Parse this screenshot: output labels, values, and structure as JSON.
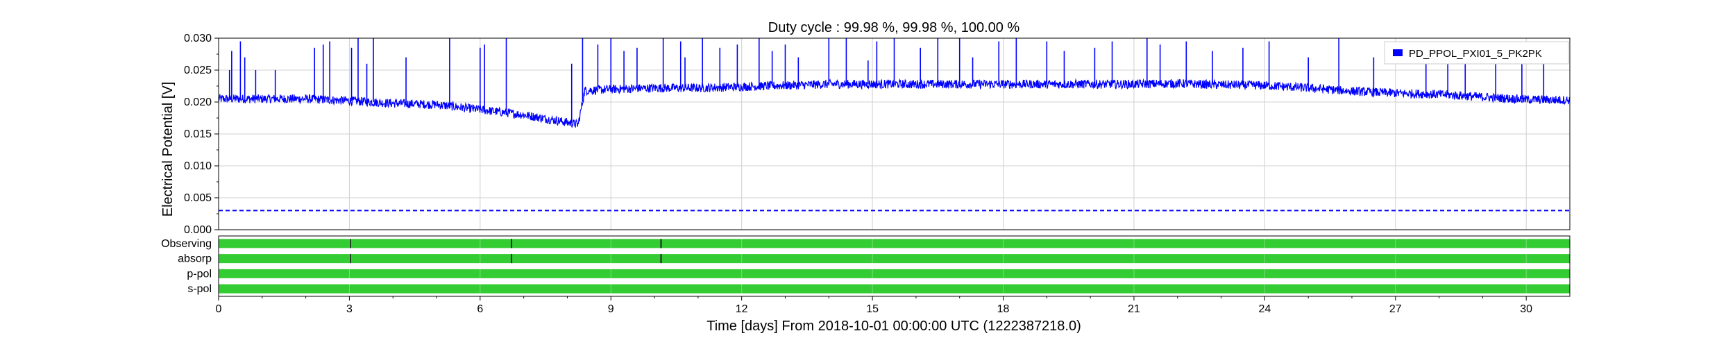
{
  "chart_data": {
    "type": "line",
    "title": "Duty cycle : 99.98 %, 99.98 %, 100.00 %",
    "xlabel": "Time [days] From 2018-10-01 00:00:00 UTC (1222387218.0)",
    "ylabel": "Electrical Potential [V]",
    "xlim": [
      0,
      31
    ],
    "ylim": [
      0,
      0.03
    ],
    "xticks": [
      0,
      3,
      6,
      9,
      12,
      15,
      18,
      21,
      24,
      27,
      30
    ],
    "yticks": [
      "0.000",
      "0.005",
      "0.010",
      "0.015",
      "0.020",
      "0.025",
      "0.030"
    ],
    "grid": true,
    "legend_position": "top-right",
    "series": [
      {
        "name": "PD_PPOL_PXI01_5_PK2PK",
        "color": "#0000ff",
        "x": [
          0,
          1,
          2,
          3,
          4,
          5,
          6,
          7,
          8,
          8.25,
          8.4,
          9,
          10,
          11,
          12,
          13,
          14,
          15,
          16,
          17,
          18,
          19,
          20,
          21,
          22,
          23,
          24,
          25,
          26,
          27,
          28,
          29,
          30,
          31
        ],
        "y": [
          0.0205,
          0.0205,
          0.0205,
          0.0202,
          0.0198,
          0.0196,
          0.0188,
          0.018,
          0.0168,
          0.0165,
          0.0218,
          0.022,
          0.0222,
          0.0222,
          0.0224,
          0.0226,
          0.0228,
          0.0228,
          0.0228,
          0.0228,
          0.0228,
          0.0228,
          0.0228,
          0.0228,
          0.0229,
          0.0227,
          0.0226,
          0.0222,
          0.0217,
          0.0214,
          0.0212,
          0.0208,
          0.0204,
          0.0203
        ],
        "noise_band": 0.0014,
        "spikes_x": [
          0.25,
          0.3,
          0.5,
          0.6,
          0.85,
          1.3,
          2.2,
          2.4,
          2.55,
          3.05,
          3.2,
          3.4,
          3.55,
          4.3,
          5.3,
          6.0,
          6.1,
          6.6,
          8.1,
          8.35,
          8.7,
          9.0,
          9.3,
          9.6,
          10.2,
          10.6,
          10.7,
          11.1,
          11.5,
          11.9,
          12.4,
          12.7,
          13.0,
          13.3,
          14.0,
          14.4,
          14.9,
          15.1,
          15.5,
          16.1,
          16.5,
          17.0,
          17.3,
          17.9,
          18.3,
          19.0,
          19.4,
          20.1,
          20.5,
          21.3,
          21.6,
          22.2,
          22.8,
          23.5,
          24.1,
          25.0,
          25.7,
          26.5,
          27.7,
          28.2,
          28.6,
          29.3,
          29.9,
          30.4
        ],
        "spikes_y": [
          0.025,
          0.028,
          0.0295,
          0.027,
          0.025,
          0.025,
          0.0285,
          0.029,
          0.0295,
          0.0285,
          0.03,
          0.026,
          0.03,
          0.027,
          0.03,
          0.0285,
          0.029,
          0.03,
          0.026,
          0.03,
          0.029,
          0.03,
          0.028,
          0.0285,
          0.03,
          0.0295,
          0.027,
          0.03,
          0.0285,
          0.029,
          0.03,
          0.028,
          0.029,
          0.027,
          0.03,
          0.03,
          0.0265,
          0.0295,
          0.03,
          0.0285,
          0.03,
          0.03,
          0.027,
          0.0295,
          0.03,
          0.0295,
          0.028,
          0.0285,
          0.0295,
          0.03,
          0.029,
          0.0295,
          0.028,
          0.0285,
          0.0295,
          0.027,
          0.03,
          0.027,
          0.029,
          0.0285,
          0.027,
          0.0265,
          0.028,
          0.026
        ]
      }
    ],
    "reference_line": {
      "y": 0.003,
      "style": "dashed",
      "color": "#0000ff"
    },
    "segments": {
      "xlim": [
        0,
        31
      ],
      "color_on": "#33cc33",
      "rows": [
        {
          "label": "Observing",
          "gaps_x": [
            3.02,
            6.72,
            10.15
          ]
        },
        {
          "label": "absorp",
          "gaps_x": [
            3.02,
            6.72,
            10.15
          ]
        },
        {
          "label": "p-pol",
          "gaps_x": []
        },
        {
          "label": "s-pol",
          "gaps_x": []
        }
      ]
    }
  }
}
